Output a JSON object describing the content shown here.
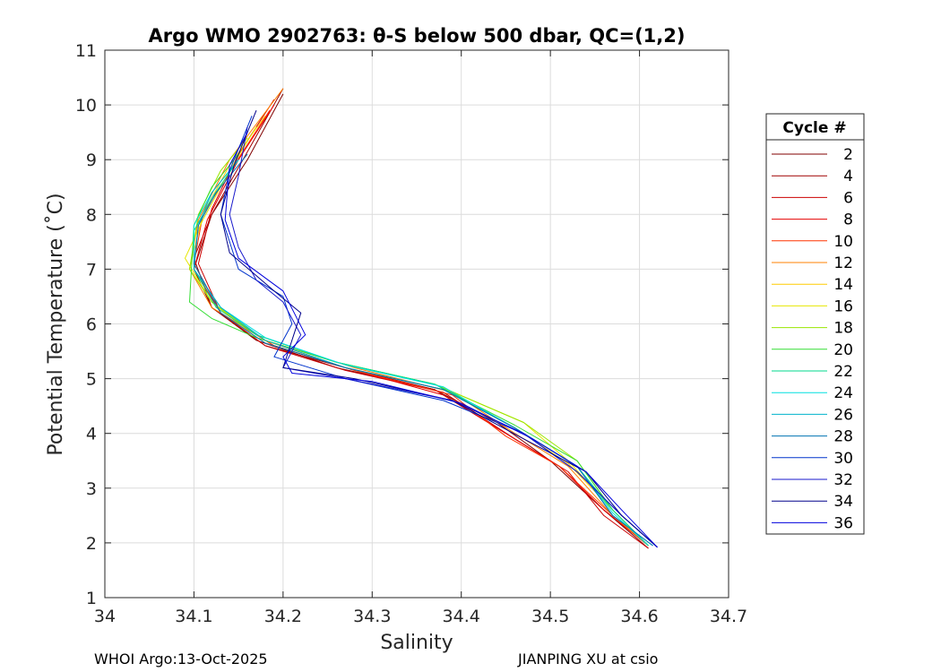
{
  "chart_data": {
    "type": "line",
    "title": "Argo WMO 2902763: θ-S below 500 dbar,  QC=(1,2)",
    "xlabel": "Salinity",
    "ylabel": "Potential Temperature (˚C)",
    "xlim": [
      34,
      34.7
    ],
    "ylim": [
      1,
      11
    ],
    "xticks": [
      "34",
      "34.1",
      "34.2",
      "34.3",
      "34.4",
      "34.5",
      "34.6",
      "34.7"
    ],
    "yticks": [
      "1",
      "2",
      "3",
      "4",
      "5",
      "6",
      "7",
      "8",
      "9",
      "10",
      "11"
    ],
    "grid": true,
    "legend": {
      "title": "Cycle #",
      "placement": "right",
      "entries": [
        "2",
        "4",
        "6",
        "8",
        "10",
        "12",
        "14",
        "16",
        "18",
        "20",
        "22",
        "24",
        "26",
        "28",
        "30",
        "32",
        "34",
        "36"
      ]
    },
    "series": [
      {
        "name": "2",
        "color": "#800000",
        "x": [
          34.2,
          34.16,
          34.12,
          34.1,
          34.12,
          34.17,
          34.26,
          34.37,
          34.44,
          34.5,
          34.56,
          34.61
        ],
        "y": [
          10.2,
          9.0,
          8.0,
          7.0,
          6.3,
          5.7,
          5.2,
          4.8,
          4.2,
          3.5,
          2.6,
          1.9
        ]
      },
      {
        "name": "4",
        "color": "#a00000",
        "x": [
          34.2,
          34.155,
          34.12,
          34.1,
          34.12,
          34.18,
          34.27,
          34.37,
          34.45,
          34.51,
          34.56,
          34.61
        ],
        "y": [
          10.3,
          9.0,
          8.0,
          7.2,
          6.3,
          5.6,
          5.2,
          4.8,
          4.0,
          3.4,
          2.6,
          1.95
        ]
      },
      {
        "name": "6",
        "color": "#cc0000",
        "x": [
          34.19,
          34.15,
          34.12,
          34.105,
          34.13,
          34.18,
          34.27,
          34.38,
          34.46,
          34.52,
          34.56,
          34.61
        ],
        "y": [
          10.1,
          9.1,
          8.1,
          7.1,
          6.2,
          5.6,
          5.15,
          4.75,
          3.9,
          3.3,
          2.5,
          1.9
        ]
      },
      {
        "name": "8",
        "color": "#e60000",
        "x": [
          34.19,
          34.15,
          34.115,
          34.1,
          34.13,
          34.19,
          34.28,
          34.38,
          34.45,
          34.51,
          34.56,
          34.61
        ],
        "y": [
          10.0,
          9.0,
          7.9,
          7.0,
          6.2,
          5.6,
          5.15,
          4.7,
          4.0,
          3.4,
          2.6,
          1.95
        ]
      },
      {
        "name": "10",
        "color": "#ff3300",
        "x": [
          34.185,
          34.145,
          34.11,
          34.1,
          34.13,
          34.19,
          34.28,
          34.39,
          34.45,
          34.51,
          34.57,
          34.61
        ],
        "y": [
          9.9,
          8.9,
          8.0,
          7.1,
          6.2,
          5.6,
          5.15,
          4.7,
          3.95,
          3.4,
          2.5,
          1.95
        ]
      },
      {
        "name": "12",
        "color": "#ff8000",
        "x": [
          34.2,
          34.14,
          34.105,
          34.095,
          34.12,
          34.18,
          34.28,
          34.39,
          34.46,
          34.52,
          34.57,
          34.61
        ],
        "y": [
          10.3,
          9.0,
          7.9,
          7.0,
          6.3,
          5.7,
          5.2,
          4.75,
          4.0,
          3.4,
          2.5,
          1.95
        ]
      },
      {
        "name": "14",
        "color": "#ffcc00",
        "x": [
          34.18,
          34.14,
          34.11,
          34.095,
          34.12,
          34.17,
          34.27,
          34.38,
          34.46,
          34.52,
          34.57,
          34.61
        ],
        "y": [
          9.8,
          8.9,
          8.0,
          7.0,
          6.4,
          5.75,
          5.2,
          4.8,
          4.1,
          3.45,
          2.6,
          1.95
        ]
      },
      {
        "name": "16",
        "color": "#e6e600",
        "x": [
          34.17,
          34.14,
          34.11,
          34.09,
          34.12,
          34.17,
          34.26,
          34.37,
          34.47,
          34.52,
          34.57,
          34.61
        ],
        "y": [
          9.6,
          8.8,
          7.9,
          7.2,
          6.4,
          5.8,
          5.3,
          4.9,
          4.2,
          3.5,
          2.6,
          1.95
        ]
      },
      {
        "name": "18",
        "color": "#99e600",
        "x": [
          34.16,
          34.13,
          34.105,
          34.095,
          34.12,
          34.17,
          34.26,
          34.37,
          34.47,
          34.53,
          34.57,
          34.61
        ],
        "y": [
          9.4,
          8.8,
          8.0,
          7.0,
          6.4,
          5.8,
          5.3,
          4.9,
          4.2,
          3.5,
          2.6,
          1.95
        ]
      },
      {
        "name": "20",
        "color": "#33dd33",
        "x": [
          34.15,
          34.12,
          34.1,
          34.095,
          34.12,
          34.17,
          34.26,
          34.37,
          34.46,
          34.53,
          34.57,
          34.61
        ],
        "y": [
          9.1,
          8.5,
          7.8,
          6.4,
          6.1,
          5.75,
          5.3,
          4.9,
          4.15,
          3.5,
          2.6,
          1.95
        ]
      },
      {
        "name": "22",
        "color": "#00d98c",
        "x": [
          34.15,
          34.12,
          34.1,
          34.1,
          34.125,
          34.17,
          34.26,
          34.37,
          34.46,
          34.53,
          34.57,
          34.61
        ],
        "y": [
          9.0,
          8.3,
          7.7,
          7.0,
          6.3,
          5.8,
          5.3,
          4.9,
          4.1,
          3.4,
          2.6,
          1.95
        ]
      },
      {
        "name": "24",
        "color": "#00e0e0",
        "x": [
          34.15,
          34.12,
          34.1,
          34.1,
          34.13,
          34.18,
          34.27,
          34.38,
          34.46,
          34.53,
          34.57,
          34.61
        ],
        "y": [
          9.0,
          8.4,
          7.8,
          7.0,
          6.3,
          5.75,
          5.25,
          4.85,
          4.1,
          3.4,
          2.55,
          1.95
        ]
      },
      {
        "name": "26",
        "color": "#00b3cc",
        "x": [
          34.15,
          34.12,
          34.105,
          34.1,
          34.13,
          34.18,
          34.27,
          34.38,
          34.46,
          34.53,
          34.57,
          34.615
        ],
        "y": [
          9.0,
          8.4,
          7.8,
          7.0,
          6.3,
          5.7,
          5.2,
          4.8,
          4.1,
          3.4,
          2.5,
          1.95
        ]
      },
      {
        "name": "28",
        "color": "#0073b3",
        "x": [
          34.16,
          34.125,
          34.105,
          34.1,
          34.13,
          34.18,
          34.27,
          34.38,
          34.46,
          34.53,
          34.57,
          34.615
        ],
        "y": [
          9.1,
          8.4,
          7.8,
          7.1,
          6.2,
          5.65,
          5.2,
          4.8,
          4.1,
          3.4,
          2.5,
          1.95
        ]
      },
      {
        "name": "30",
        "color": "#0033cc",
        "x": [
          34.165,
          34.14,
          34.13,
          34.15,
          34.2,
          34.21,
          34.19,
          34.27,
          34.38,
          34.47,
          34.53,
          34.58,
          34.62
        ],
        "y": [
          9.8,
          8.8,
          8.0,
          7.0,
          6.5,
          6.0,
          5.4,
          5.0,
          4.6,
          4.0,
          3.3,
          2.5,
          1.92
        ]
      },
      {
        "name": "32",
        "color": "#1a1acc",
        "x": [
          34.16,
          34.15,
          34.14,
          34.15,
          34.17,
          34.2,
          34.22,
          34.2,
          34.27,
          34.39,
          34.47,
          34.53,
          34.58,
          34.62
        ],
        "y": [
          9.6,
          8.7,
          8.0,
          7.4,
          6.8,
          6.4,
          5.8,
          5.2,
          5.0,
          4.6,
          4.0,
          3.3,
          2.5,
          1.92
        ]
      },
      {
        "name": "34",
        "color": "#00008b",
        "x": [
          34.17,
          34.145,
          34.13,
          34.14,
          34.19,
          34.22,
          34.21,
          34.2,
          34.28,
          34.39,
          34.47,
          34.54,
          34.58,
          34.62
        ],
        "y": [
          9.9,
          8.9,
          8.0,
          7.3,
          6.6,
          6.2,
          5.7,
          5.2,
          5.0,
          4.6,
          3.9,
          3.3,
          2.5,
          1.92
        ]
      },
      {
        "name": "36",
        "color": "#0000dd",
        "x": [
          34.16,
          34.14,
          34.135,
          34.15,
          34.2,
          34.225,
          34.2,
          34.21,
          34.3,
          34.4,
          34.48,
          34.54,
          34.58,
          34.62
        ],
        "y": [
          9.5,
          8.9,
          7.9,
          7.2,
          6.6,
          5.8,
          5.4,
          5.1,
          4.95,
          4.55,
          3.9,
          3.3,
          2.6,
          1.92
        ]
      }
    ]
  },
  "footer": {
    "left": "WHOI Argo:13-Oct-2025",
    "right": "JIANPING XU at csio"
  }
}
